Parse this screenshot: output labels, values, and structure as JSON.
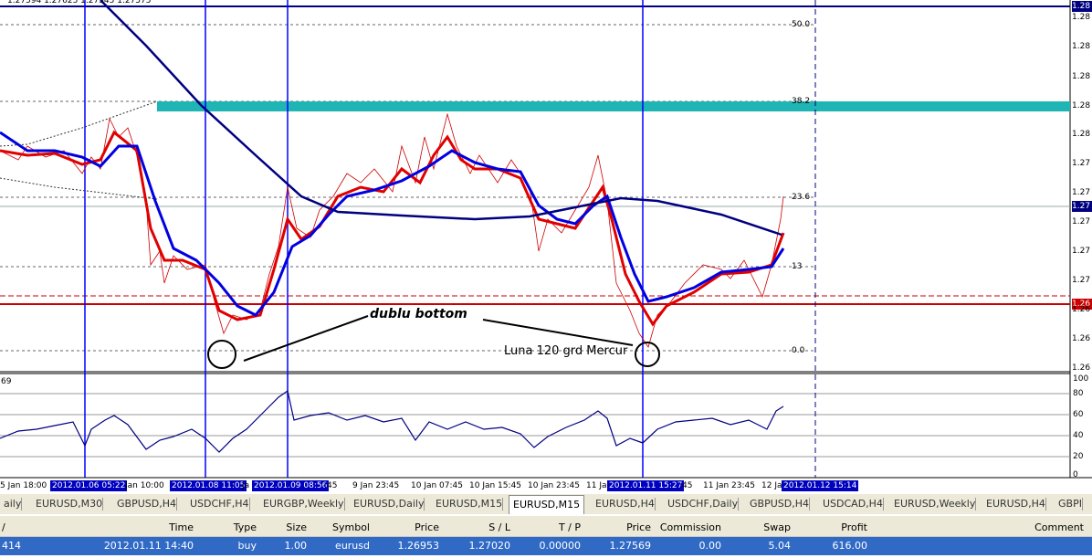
{
  "header_info": "1.27594 1.27625 1.27545 1.27575",
  "fibo_levels": [
    "50.0",
    "38.2",
    "23.6",
    "13",
    "0.0"
  ],
  "price_axis": [
    {
      "label": "1.28",
      "highlight": "#000080"
    },
    {
      "label": "1.28"
    },
    {
      "label": "1.28"
    },
    {
      "label": "1.28"
    },
    {
      "label": "1.28"
    },
    {
      "label": "1.28"
    },
    {
      "label": "1.27"
    },
    {
      "label": "1.27"
    },
    {
      "label": "1.27",
      "highlight": "#000080"
    },
    {
      "label": "1.27"
    },
    {
      "label": "1.27"
    },
    {
      "label": "1.27"
    },
    {
      "label": "1.26",
      "highlight": "#cc0000"
    },
    {
      "label": "1.26"
    },
    {
      "label": "1.26"
    },
    {
      "label": "1.26"
    }
  ],
  "indicator_label": "69",
  "indicator_axis": [
    "100",
    "80",
    "60",
    "40",
    "20",
    "0"
  ],
  "annotations": {
    "pattern": "dublu bottom",
    "aspect": "Luna 120 grd Mercur"
  },
  "time_axis": [
    {
      "label": "5 Jan 18:00"
    },
    {
      "label": "2012.01.06 05:22",
      "highlight": true
    },
    {
      "label": "Jan 10:00"
    },
    {
      "label": "2012.01.08 11:05",
      "highlight": true
    },
    {
      "label": "Ja"
    },
    {
      "label": "2012.01.09 08:56",
      "highlight": true
    },
    {
      "label": ":45"
    },
    {
      "label": "9 Jan 23:45"
    },
    {
      "label": "10 Jan 07:45"
    },
    {
      "label": "10 Jan 15:45"
    },
    {
      "label": "10 Jan 23:45"
    },
    {
      "label": "11 Ja"
    },
    {
      "label": "2012.01.11 15:27",
      "highlight": true
    },
    {
      "label": ":45"
    },
    {
      "label": "11 Jan 23:45"
    },
    {
      "label": "12 Ja"
    },
    {
      "label": "2012.01.12 15:14",
      "highlight": true
    }
  ],
  "tabs": [
    {
      "label": "aily"
    },
    {
      "label": "EURUSD,M30"
    },
    {
      "label": "GBPUSD,H4"
    },
    {
      "label": "USDCHF,H4"
    },
    {
      "label": "EURGBP,Weekly"
    },
    {
      "label": "EURUSD,Daily"
    },
    {
      "label": "EURUSD,M15"
    },
    {
      "label": "EURUSD,M15",
      "active": true
    },
    {
      "label": "EURUSD,H4"
    },
    {
      "label": "USDCHF,Daily"
    },
    {
      "label": "GBPUSD,H4"
    },
    {
      "label": "USDCAD,H4"
    },
    {
      "label": "EURUSD,Weekly"
    },
    {
      "label": "EURUSD,H4"
    },
    {
      "label": "GBPI"
    }
  ],
  "positions_table": {
    "columns": [
      "/",
      "Time",
      "Type",
      "Size",
      "Symbol",
      "Price",
      "S / L",
      "T / P",
      "Price",
      "Commission",
      "Swap",
      "Profit",
      "Comment"
    ],
    "rows": [
      [
        "414",
        "2012.01.11 14:40",
        "buy",
        "1.00",
        "eurusd",
        "1.26953",
        "1.27020",
        "0.00000",
        "1.27569",
        "0.00",
        "5.04",
        "616.00"
      ]
    ]
  }
}
